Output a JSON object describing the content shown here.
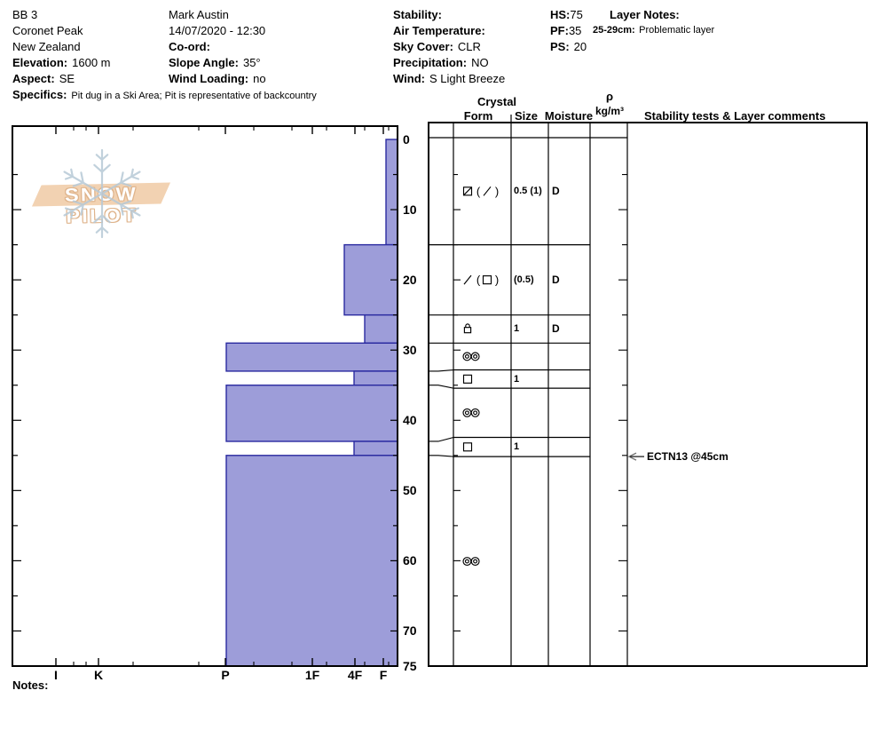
{
  "header": {
    "left": {
      "site": "BB 3",
      "region": "Coronet Peak",
      "country": "New Zealand",
      "elevation_label": "Elevation:",
      "elevation_value": "1600 m",
      "aspect_label": "Aspect:",
      "aspect_value": "SE",
      "specifics_label": "Specifics:",
      "specifics_value": "Pit dug in a Ski Area; Pit is representative of backcountry"
    },
    "middle": {
      "observer": "Mark Austin",
      "datetime": "14/07/2020 - 12:30",
      "coord_label": "Co-ord:",
      "coord_value": "",
      "slope_label": "Slope Angle:",
      "slope_value": "35°",
      "wind_loading_label": "Wind Loading:",
      "wind_loading_value": "no"
    },
    "conditions": {
      "stability_label": "Stability:",
      "stability_value": "",
      "air_temp_label": "Air Temperature:",
      "air_temp_value": "",
      "sky_label": "Sky Cover:",
      "sky_value": "CLR",
      "precip_label": "Precipitation:",
      "precip_value": "NO",
      "wind_label": "Wind:",
      "wind_value": "S Light Breeze"
    },
    "totals": {
      "hs_label": "HS:",
      "hs_value": "75",
      "pf_label": "PF:",
      "pf_value": "35",
      "ps_label": "PS:",
      "ps_value": "20"
    },
    "layer_notes": {
      "label": "Layer Notes:",
      "note_range": "25-29cm:",
      "note_text": "Problematic layer"
    }
  },
  "logo": {
    "text": "SNOW PILOT"
  },
  "table_headers": {
    "crystal": "Crystal",
    "form": "Form",
    "size": "Size",
    "moisture": "Moisture",
    "rho": "ρ",
    "rho_units": "kg/m³",
    "comments": "Stability tests & Layer comments"
  },
  "notes_label": "Notes:",
  "chart_data": {
    "type": "bar",
    "title": "Hand hardness profile vs snow depth",
    "depth_axis": {
      "unit": "cm",
      "min": 0,
      "max": 75,
      "labels": [
        0,
        10,
        20,
        30,
        40,
        50,
        60,
        70,
        75
      ],
      "minor_step": 5
    },
    "hardness_axis": {
      "categories": [
        "I",
        "K",
        "P",
        "1F",
        "4F",
        "F"
      ],
      "note": "hardness increases toward the left"
    },
    "layers": [
      {
        "top_cm": 0,
        "bottom_cm": 15,
        "hardness": "F",
        "form_primary": "square-diagonal",
        "form_secondary": "slash",
        "size": "0.5 (1)",
        "moisture": "D"
      },
      {
        "top_cm": 15,
        "bottom_cm": 25,
        "hardness": "4F+",
        "form_primary": "slash",
        "form_secondary": "square",
        "size": "(0.5)",
        "moisture": "D"
      },
      {
        "top_cm": 25,
        "bottom_cm": 29,
        "hardness": "4F-",
        "form_primary": "padlock",
        "form_secondary": null,
        "size": "1",
        "moisture": "D"
      },
      {
        "top_cm": 29,
        "bottom_cm": 33,
        "hardness": "P",
        "form_primary": "double-circles",
        "form_secondary": null,
        "size": "",
        "moisture": ""
      },
      {
        "top_cm": 33,
        "bottom_cm": 35,
        "hardness": "4F",
        "form_primary": "square",
        "form_secondary": null,
        "size": "1",
        "moisture": ""
      },
      {
        "top_cm": 35,
        "bottom_cm": 43,
        "hardness": "P",
        "form_primary": "double-circles",
        "form_secondary": null,
        "size": "",
        "moisture": ""
      },
      {
        "top_cm": 43,
        "bottom_cm": 45,
        "hardness": "4F",
        "form_primary": "square",
        "form_secondary": null,
        "size": "1",
        "moisture": ""
      },
      {
        "top_cm": 45,
        "bottom_cm": 75,
        "hardness": "P",
        "form_primary": "double-circles",
        "form_secondary": null,
        "size": "",
        "moisture": ""
      }
    ],
    "stability_tests": [
      {
        "label": "ECTN13 @45cm",
        "depth_cm": 45
      }
    ],
    "layout": {
      "hardness_bar_x": {
        "I": 63,
        "K": 111,
        "P": 255,
        "1F": 352,
        "4F": 399,
        "4F+": 388,
        "4F-": 411,
        "F": 435
      },
      "hardness_label_x": {
        "I": 63,
        "K": 111,
        "P": 254,
        "1F": 352,
        "4F": 400,
        "F": 432
      },
      "minor_tick_x": [
        83,
        97,
        150,
        224,
        286,
        329,
        368,
        411,
        438
      ],
      "colors": {
        "bar_fill": "#9d9dd9",
        "bar_stroke": "#2a2aa0",
        "flake": "#b7c9d6",
        "banner": "#f2d2b2"
      }
    }
  }
}
